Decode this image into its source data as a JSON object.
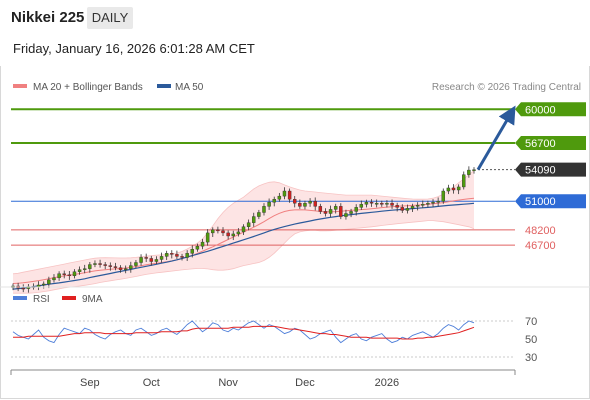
{
  "header": {
    "title": "Nikkei 225",
    "period": "DAILY",
    "timestamp": "Friday, January 16, 2026 6:01:28 AM CET"
  },
  "credit": "Research © 2026 Trading Central",
  "chart_data": [
    {
      "type": "candlestick",
      "legend": [
        {
          "label": "MA 20 + Bollinger Bands",
          "color": "#f08080"
        },
        {
          "label": "MA 50",
          "color": "#2b5a9b"
        }
      ],
      "legend_placement": "top-left",
      "ylim": [
        42800,
        61400
      ],
      "x_tick_labels": [
        "Sep",
        "Oct",
        "Nov",
        "Dec",
        "2026"
      ],
      "levels": [
        {
          "value": 60000,
          "label": "60000",
          "type": "target",
          "color": "#4f9a0d"
        },
        {
          "value": 56700,
          "label": "56700",
          "type": "resistance",
          "color": "#4f9a0d"
        },
        {
          "value": 54090,
          "label": "54090",
          "type": "last-price",
          "color": "#333333"
        },
        {
          "value": 51000,
          "label": "51000",
          "type": "pivot",
          "color": "#2e6bd6"
        },
        {
          "value": 48200,
          "label": "48200",
          "type": "support",
          "color": "#e06060"
        },
        {
          "value": 46700,
          "label": "46700",
          "type": "support",
          "color": "#e06060"
        }
      ],
      "closes": [
        42700,
        42500,
        42450,
        42650,
        42600,
        42800,
        42900,
        43300,
        43500,
        43900,
        43800,
        43700,
        44100,
        44300,
        44400,
        44800,
        44900,
        44800,
        44700,
        44600,
        44500,
        44300,
        44400,
        44700,
        45000,
        45500,
        45400,
        45100,
        45300,
        45600,
        45900,
        45800,
        45600,
        45500,
        45900,
        46300,
        46600,
        47000,
        47900,
        48200,
        48100,
        47900,
        47600,
        47800,
        48000,
        48500,
        48900,
        49500,
        49900,
        50500,
        50900,
        51200,
        51500,
        52000,
        51200,
        50800,
        50500,
        50800,
        51000,
        50500,
        50000,
        49800,
        50200,
        50500,
        49500,
        49800,
        50000,
        50400,
        50700,
        50900,
        50800,
        50800,
        50700,
        50800,
        50600,
        50400,
        50100,
        50300,
        50500,
        50600,
        50700,
        50800,
        50900,
        51000,
        52000,
        52300,
        52100,
        52400,
        53600,
        54050,
        54090
      ],
      "ma50": [
        42400,
        42450,
        42500,
        42560,
        42640,
        42720,
        42800,
        42880,
        42950,
        43010,
        43080,
        43160,
        43240,
        43320,
        43410,
        43520,
        43630,
        43730,
        43830,
        43930,
        44030,
        44130,
        44230,
        44330,
        44430,
        44530,
        44630,
        44730,
        44830,
        44930,
        45030,
        45140,
        45270,
        45400,
        45540,
        45680,
        45820,
        45960,
        46100,
        46260,
        46420,
        46580,
        46740,
        46900,
        47060,
        47220,
        47380,
        47550,
        47720,
        47900,
        48080,
        48240,
        48390,
        48520,
        48640,
        48760,
        48870,
        48970,
        49070,
        49170,
        49260,
        49350,
        49430,
        49500,
        49570,
        49630,
        49690,
        49750,
        49810,
        49860,
        49920,
        49970,
        50020,
        50070,
        50120,
        50160,
        50200,
        50240,
        50280,
        50320,
        50360,
        50400,
        50440,
        50490,
        50540,
        50590,
        50630,
        50670,
        50710,
        50750,
        50800
      ],
      "ma20": [
        42950,
        42980,
        43020,
        43080,
        43150,
        43230,
        43320,
        43420,
        43520,
        43610,
        43690,
        43760,
        43840,
        43920,
        44000,
        44090,
        44180,
        44250,
        44300,
        44340,
        44380,
        44420,
        44460,
        44520,
        44600,
        44690,
        44780,
        44860,
        44930,
        45000,
        45080,
        45160,
        45260,
        45380,
        45530,
        45700,
        45900,
        46110,
        46320,
        46540,
        46770,
        47010,
        47250,
        47490,
        47730,
        47970,
        48210,
        48460,
        48720,
        49000,
        49300,
        49580,
        49820,
        50000,
        50100,
        50150,
        50170,
        50150,
        50100,
        50050,
        50000,
        49980,
        49970,
        49990,
        50020,
        50060,
        50100,
        50140,
        50180,
        50220,
        50270,
        50320,
        50380,
        50430,
        50470,
        50500,
        50530,
        50560,
        50590,
        50620,
        50660,
        50700,
        50750,
        50800,
        50870,
        50950,
        51030,
        51110,
        51180,
        51240,
        51300
      ],
      "bb_upper": [
        43900,
        43950,
        44050,
        44150,
        44250,
        44350,
        44450,
        44550,
        44650,
        44750,
        44850,
        44950,
        45050,
        45150,
        45250,
        45350,
        45420,
        45460,
        45470,
        45460,
        45450,
        45440,
        45440,
        45460,
        45500,
        45560,
        45620,
        45680,
        45720,
        45750,
        45790,
        45840,
        45930,
        46080,
        46320,
        46600,
        46900,
        47300,
        47900,
        48600,
        49300,
        49900,
        50400,
        50800,
        51100,
        51400,
        51800,
        52200,
        52500,
        52700,
        52850,
        52900,
        52800,
        52600,
        52400,
        52250,
        52100,
        52000,
        51950,
        51900,
        51850,
        51800,
        51750,
        51700,
        51650,
        51600,
        51600,
        51600,
        51600,
        51600,
        51600,
        51550,
        51500,
        51450,
        51400,
        51350,
        51300,
        51260,
        51220,
        51200,
        51200,
        51220,
        51300,
        51450,
        51700,
        52000,
        52400,
        52800,
        53200,
        53600,
        54000
      ],
      "bb_lower": [
        42000,
        42010,
        42000,
        42000,
        42030,
        42080,
        42150,
        42230,
        42330,
        42430,
        42520,
        42580,
        42640,
        42700,
        42770,
        42850,
        42940,
        43040,
        43130,
        43210,
        43290,
        43370,
        43450,
        43540,
        43630,
        43740,
        43840,
        43920,
        43980,
        44040,
        44100,
        44160,
        44220,
        44280,
        44330,
        44380,
        44420,
        44420,
        44380,
        44300,
        44250,
        44250,
        44300,
        44400,
        44550,
        44700,
        44800,
        44900,
        45000,
        45200,
        45500,
        45900,
        46400,
        46900,
        47400,
        47800,
        48000,
        48100,
        48150,
        48150,
        48100,
        48100,
        48120,
        48160,
        48200,
        48250,
        48300,
        48350,
        48400,
        48450,
        48500,
        48560,
        48620,
        48680,
        48740,
        48800,
        48850,
        48900,
        48950,
        49000,
        49050,
        49100,
        49100,
        49050,
        49000,
        48900,
        48800,
        48700,
        48600,
        48500,
        48300
      ]
    },
    {
      "type": "line",
      "legend": [
        {
          "label": "RSI",
          "color": "#4f7fd9"
        },
        {
          "label": "9MA",
          "color": "#e02020"
        }
      ],
      "y_tick_labels": [
        "70",
        "50",
        "30"
      ],
      "ylim": [
        20,
        80
      ],
      "rsi": [
        58,
        54,
        52,
        50,
        55,
        60,
        52,
        48,
        46,
        55,
        62,
        60,
        58,
        56,
        62,
        60,
        55,
        52,
        50,
        55,
        58,
        60,
        56,
        54,
        60,
        62,
        58,
        54,
        56,
        60,
        62,
        58,
        55,
        60,
        66,
        70,
        64,
        58,
        62,
        68,
        66,
        60,
        58,
        62,
        60,
        64,
        68,
        70,
        66,
        62,
        66,
        64,
        60,
        56,
        58,
        62,
        60,
        55,
        50,
        52,
        56,
        58,
        60,
        52,
        46,
        50,
        54,
        56,
        50,
        48,
        52,
        54,
        56,
        50,
        46,
        48,
        52,
        50,
        54,
        56,
        58,
        55,
        52,
        56,
        62,
        66,
        64,
        60,
        66,
        70,
        68
      ],
      "ma9": [
        52,
        52,
        52,
        53,
        53,
        53,
        53,
        53,
        53,
        53,
        54,
        55,
        56,
        56,
        57,
        57,
        57,
        57,
        56,
        56,
        56,
        56,
        56,
        56,
        57,
        57,
        57,
        57,
        57,
        58,
        58,
        58,
        58,
        59,
        59,
        61,
        62,
        62,
        62,
        62,
        62,
        62,
        62,
        63,
        63,
        63,
        63,
        64,
        64,
        64,
        64,
        64,
        63,
        62,
        61,
        61,
        60,
        59,
        58,
        57,
        56,
        56,
        55,
        55,
        54,
        53,
        52,
        52,
        52,
        52,
        51,
        51,
        51,
        51,
        51,
        51,
        50,
        50,
        50,
        51,
        51,
        52,
        52,
        53,
        54,
        55,
        56,
        57,
        59,
        61,
        63
      ]
    }
  ]
}
